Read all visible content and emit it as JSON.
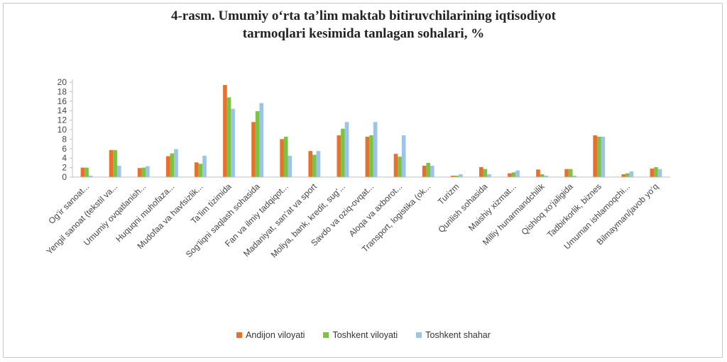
{
  "chart_data": {
    "type": "bar",
    "title_line1": "4-rasm. Umumiy o‘rta ta’lim maktab bitiruvchilarining iqtisodiyot",
    "title_line2": "tarmoqlari kesimida tanlagan sohalari, %",
    "categories": [
      "Og‘ir sanoat...",
      "Yengil sanoat (tekstil va...",
      "Umumiy ovqatlanish...",
      "Huquqni muhofaza...",
      "Mudofaa va havfsizlik...",
      "Ta’lim tizimida",
      "Sog‘liqni saqlash sohasida",
      "Fan va ilmiy tadqiqot...",
      "Madaniyat, san’at va sport",
      "Moliya, bank, kredit, sug‘...",
      "Savdo va oziq-ovqat...",
      "Aloqa va axborot...",
      "Transport, logistika (ok...",
      "Turizm",
      "Qurilish sohasida",
      "Maishiy xizmat...",
      "Milliy hunarmandchilik",
      "Qishloq xo‘jaligida",
      "Tadbirkorlik, biznes",
      "Umuman ishlamoqchi...",
      "Bilmayman/javob yo‘q"
    ],
    "series": [
      {
        "name": "Andijon viloyati",
        "color": "#e8702a",
        "values": [
          2,
          5.7,
          1.9,
          4.4,
          3.1,
          19.4,
          11.6,
          8,
          5.5,
          8.8,
          8.5,
          4.9,
          2.4,
          0.3,
          2.1,
          0.8,
          1.6,
          1.7,
          8.8,
          0.6,
          1.8
        ]
      },
      {
        "name": "Toshkent viloyati",
        "color": "#7cc243",
        "values": [
          2,
          5.7,
          2,
          5,
          2.8,
          16.8,
          13.9,
          8.5,
          4.7,
          10.2,
          8.8,
          4.3,
          3,
          0.3,
          1.7,
          1,
          0.6,
          1.7,
          8.5,
          0.8,
          2.1
        ]
      },
      {
        "name": "Toshkent shahar",
        "color": "#9dc3e6",
        "values": [
          0.3,
          2.4,
          2.3,
          5.9,
          4.5,
          14.4,
          15.6,
          4.5,
          5.5,
          11.6,
          11.6,
          8.8,
          2.4,
          0.6,
          0.6,
          1.4,
          0.3,
          0.3,
          8.5,
          1.2,
          1.7
        ]
      }
    ],
    "yticks": [
      "0",
      "2",
      "4",
      "6",
      "8",
      "10",
      "12",
      "14",
      "16",
      "18",
      "20"
    ],
    "ylim": [
      0,
      20
    ],
    "xlabel": "",
    "ylabel": "",
    "grid": false,
    "legend_position": "bottom"
  }
}
